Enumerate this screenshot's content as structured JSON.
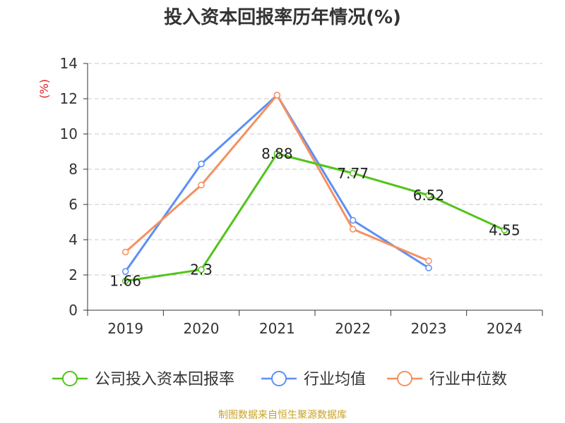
{
  "chart_data": {
    "type": "line",
    "title": "投入资本回报率历年情况(%)",
    "ylabel": "(%)",
    "xlabel": "",
    "categories": [
      "2019",
      "2020",
      "2021",
      "2022",
      "2023",
      "2024"
    ],
    "ylim": [
      0,
      14
    ],
    "yticks": [
      0,
      2,
      4,
      6,
      8,
      10,
      12,
      14
    ],
    "grid": true,
    "legend_position": "bottom",
    "series": [
      {
        "name": "公司投入资本回报率",
        "color": "#52c41a",
        "values": [
          1.66,
          2.3,
          8.88,
          7.77,
          6.52,
          4.55
        ],
        "labels": [
          "1.66",
          "2.3",
          "8.88",
          "7.77",
          "6.52",
          "4.55"
        ]
      },
      {
        "name": "行业均值",
        "color": "#5b8ff9",
        "values": [
          2.2,
          8.3,
          12.2,
          5.1,
          2.4,
          null
        ]
      },
      {
        "name": "行业中位数",
        "color": "#f6905f",
        "values": [
          3.3,
          7.1,
          12.2,
          4.6,
          2.8,
          null
        ]
      }
    ]
  },
  "footer": {
    "source": "制图数据来自恒生聚源数据库"
  }
}
